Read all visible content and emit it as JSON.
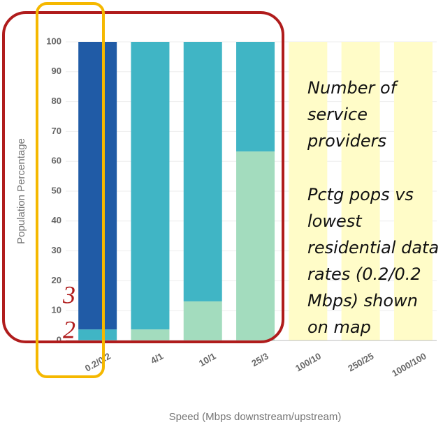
{
  "chart_data": {
    "type": "stacked_bar",
    "categories": [
      "0.2/0.2",
      "4/1",
      "10/1",
      "25/3",
      "100/10",
      "250/25",
      "1000/100"
    ],
    "series": [
      {
        "color": "#a3dcbe",
        "values": [
          0,
          3.7,
          13.1,
          63.3,
          0,
          0,
          0
        ]
      },
      {
        "color": "#40b5c5",
        "values": [
          3.7,
          96.3,
          86.9,
          36.7,
          0,
          0,
          0
        ]
      },
      {
        "color": "#205ba6",
        "values": [
          96.3,
          0,
          0,
          0,
          0,
          0,
          0
        ]
      },
      {
        "color": "#fffcc8",
        "values": [
          0,
          0,
          0,
          0,
          100,
          100,
          100
        ]
      }
    ],
    "ylim": [
      0,
      100
    ],
    "yticks": [
      0,
      10,
      20,
      30,
      40,
      50,
      60,
      70,
      80,
      90,
      100
    ],
    "grid": true,
    "y_label": "Population Percentage",
    "x_label": "Speed (Mbps downstream/upstream)",
    "annotations": {
      "note_1": [
        "Number of",
        "service",
        "providers"
      ],
      "note_2": [
        "Pctg pops vs",
        "lowest",
        "residential data",
        "rates (0.2/0.2",
        "Mbps) shown",
        "on map"
      ],
      "markers": [
        "3",
        "2"
      ]
    }
  }
}
